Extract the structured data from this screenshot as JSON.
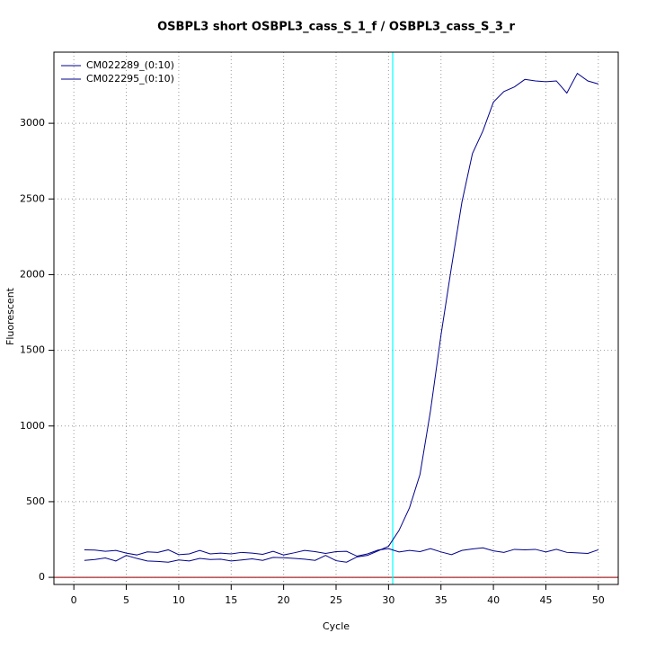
{
  "chart_data": {
    "type": "line",
    "title": "OSBPL3 short OSBPL3_cass_S_1_f / OSBPL3_cass_S_3_r",
    "x_label": "Cycle",
    "y_label": "Fluorescent",
    "x": [
      1,
      2,
      3,
      4,
      5,
      6,
      7,
      8,
      9,
      10,
      11,
      12,
      13,
      14,
      15,
      16,
      17,
      18,
      19,
      20,
      21,
      22,
      23,
      24,
      25,
      26,
      27,
      28,
      29,
      30,
      31,
      32,
      33,
      34,
      35,
      36,
      37,
      38,
      39,
      40,
      41,
      42,
      43,
      44,
      45,
      46,
      47,
      48,
      49,
      50
    ],
    "series": [
      {
        "name": "CM022289_(0:10)",
        "color": "#00008b",
        "values": [
          112,
          118,
          128,
          108,
          145,
          125,
          108,
          105,
          100,
          115,
          108,
          125,
          118,
          120,
          108,
          115,
          122,
          112,
          132,
          130,
          125,
          120,
          112,
          145,
          110,
          100,
          135,
          145,
          175,
          205,
          310,
          460,
          680,
          1100,
          1600,
          2050,
          2480,
          2800,
          2950,
          3140,
          3210,
          3240,
          3290,
          3280,
          3275,
          3280,
          3200,
          3330,
          3280,
          3260
        ]
      },
      {
        "name": "CM022295_(0:10)",
        "color": "#00008b",
        "values": [
          182,
          180,
          172,
          178,
          160,
          148,
          168,
          165,
          182,
          150,
          155,
          178,
          155,
          160,
          155,
          165,
          160,
          152,
          172,
          148,
          162,
          178,
          170,
          158,
          170,
          172,
          140,
          155,
          180,
          190,
          168,
          178,
          170,
          190,
          168,
          150,
          178,
          188,
          195,
          175,
          165,
          185,
          182,
          185,
          168,
          185,
          165,
          162,
          158,
          182
        ]
      }
    ],
    "xlim": [
      -1.9,
      51.9
    ],
    "ylim": [
      -47,
      3470
    ],
    "xticks": [
      0,
      5,
      10,
      15,
      20,
      25,
      30,
      35,
      40,
      45,
      50
    ],
    "yticks": [
      0,
      500,
      1000,
      1500,
      2000,
      2500,
      3000
    ],
    "grid": true,
    "legend": "top-left",
    "threshold_cycle": 30.4,
    "threshold_color": "#00ffff",
    "baseline": 0,
    "baseline_color": "#a52a2a"
  }
}
